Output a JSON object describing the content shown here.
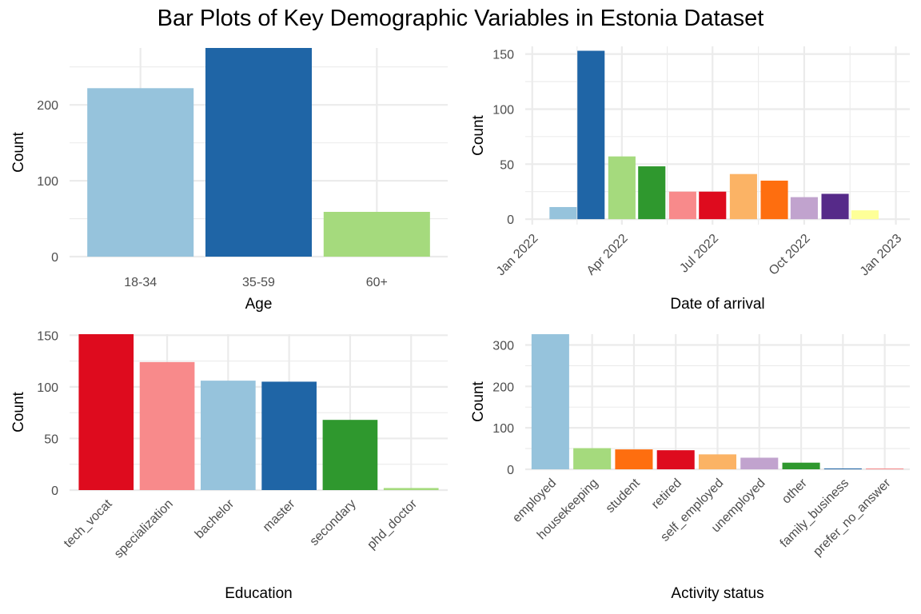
{
  "title": "Bar Plots of Key Demographic Variables in Estonia Dataset",
  "chart_data": [
    {
      "id": "age",
      "type": "bar",
      "xlabel": "Age",
      "ylabel": "Count",
      "categories": [
        "18-34",
        "35-59",
        "60+"
      ],
      "values": [
        222,
        275,
        59
      ],
      "colors": [
        "#96C3DC",
        "#1F65A6",
        "#A5DA7D"
      ],
      "ylim": [
        0,
        275
      ],
      "yticks": [
        0,
        100,
        200
      ],
      "ytick_labels": [
        "0",
        "100",
        "200"
      ],
      "x_tick_rotation": 0,
      "grid": true
    },
    {
      "id": "arrival",
      "type": "bar",
      "xlabel": "Date of arrival",
      "ylabel": "Count",
      "x_axis": "date",
      "xlim": [
        "2021-12-25",
        "2023-01-15"
      ],
      "xticks": [
        "2022-01-01",
        "2022-04-01",
        "2022-07-01",
        "2022-10-01",
        "2023-01-01"
      ],
      "xtick_labels": [
        "Jan 2022",
        "Apr 2022",
        "Jul 2022",
        "Oct 2022",
        "Jan 2023"
      ],
      "x": [
        "2022-02-01",
        "2022-03-01",
        "2022-04-01",
        "2022-05-01",
        "2022-06-01",
        "2022-07-01",
        "2022-08-01",
        "2022-09-01",
        "2022-10-01",
        "2022-11-01",
        "2022-12-01"
      ],
      "values": [
        11,
        153,
        57,
        48,
        25,
        25,
        41,
        35,
        20,
        23,
        8
      ],
      "colors": [
        "#96C3DC",
        "#1F65A6",
        "#A5DA7D",
        "#2F982E",
        "#F88A8B",
        "#DE0B1E",
        "#FBB365",
        "#FE6E0F",
        "#C1A3CE",
        "#562A89",
        "#FEFF98"
      ],
      "ylim": [
        -5,
        157
      ],
      "yticks": [
        0,
        50,
        100,
        150
      ],
      "ytick_labels": [
        "0",
        "50",
        "100",
        "150"
      ],
      "x_tick_rotation": -45,
      "grid": true
    },
    {
      "id": "education",
      "type": "bar",
      "xlabel": "Education",
      "ylabel": "Count",
      "categories": [
        "tech_vocat",
        "specialization",
        "bachelor",
        "master",
        "secondary",
        "phd_doctor"
      ],
      "values": [
        151,
        124,
        106,
        105,
        68,
        2
      ],
      "colors": [
        "#DE0B1E",
        "#F88A8B",
        "#96C3DC",
        "#1F65A6",
        "#2F982E",
        "#A5DA7D"
      ],
      "ylim": [
        0,
        151
      ],
      "yticks": [
        0,
        50,
        100,
        150
      ],
      "ytick_labels": [
        "0",
        "50",
        "100",
        "150"
      ],
      "x_tick_rotation": -45,
      "grid": true
    },
    {
      "id": "activity",
      "type": "bar",
      "xlabel": "Activity status",
      "ylabel": "Count",
      "categories": [
        "employed",
        "housekeeping",
        "student",
        "retired",
        "self_employed",
        "unemployed",
        "other",
        "family_business",
        "prefer_no_answer"
      ],
      "values": [
        326,
        51,
        48,
        46,
        36,
        28,
        16,
        2,
        2
      ],
      "colors": [
        "#96C3DC",
        "#A5DA7D",
        "#FE6E0F",
        "#DE0B1E",
        "#FBB365",
        "#C1A3CE",
        "#2F982E",
        "#1F65A6",
        "#F88A8B"
      ],
      "ylim": [
        0,
        326
      ],
      "yticks": [
        0,
        100,
        200,
        300
      ],
      "ytick_labels": [
        "0",
        "100",
        "200",
        "300"
      ],
      "x_tick_rotation": -45,
      "grid": true
    }
  ]
}
